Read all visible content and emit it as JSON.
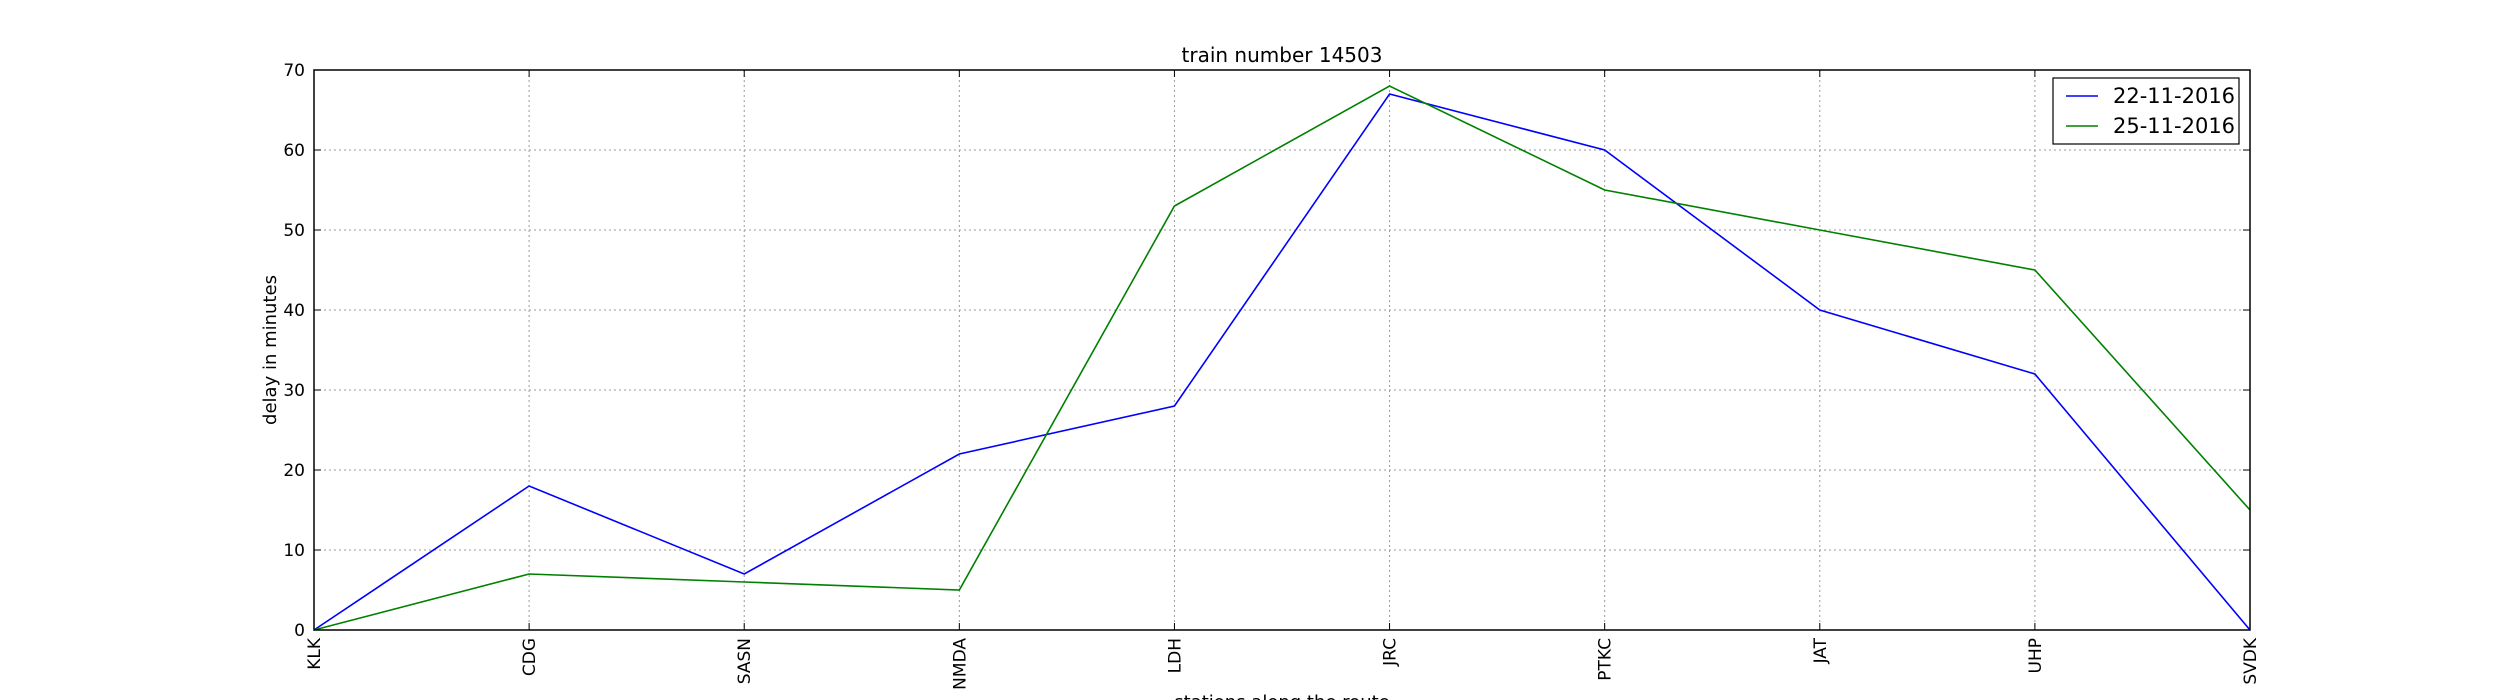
{
  "chart_data": {
    "type": "line",
    "title": "train number 14503",
    "xlabel": "stations along the route",
    "ylabel": "delay in minutes",
    "categories": [
      "KLK",
      "CDG",
      "SASN",
      "NMDA",
      "LDH",
      "JRC",
      "PTKC",
      "JAT",
      "UHP",
      "SVDK"
    ],
    "ylim": [
      0,
      70
    ],
    "yticks": [
      0,
      10,
      20,
      30,
      40,
      50,
      60,
      70
    ],
    "grid": true,
    "legend_position": "top-right",
    "series": [
      {
        "name": "22-11-2016",
        "color": "#0000ff",
        "values": [
          0,
          18,
          7,
          22,
          28,
          67,
          60,
          40,
          32,
          0
        ]
      },
      {
        "name": "25-11-2016",
        "color": "#008000",
        "values": [
          0,
          7,
          6,
          5,
          53,
          68,
          55,
          50,
          45,
          15
        ]
      }
    ]
  }
}
